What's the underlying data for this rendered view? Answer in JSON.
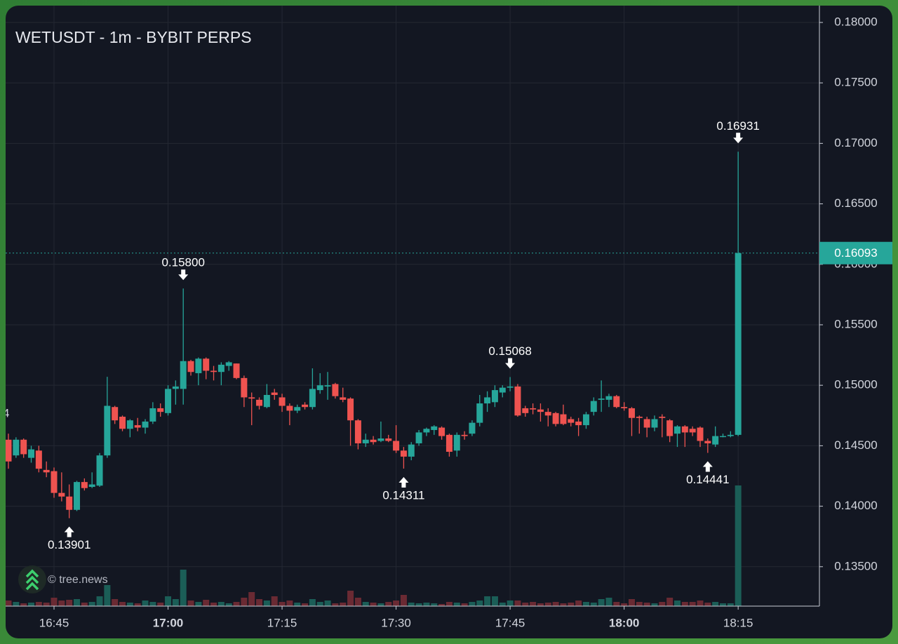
{
  "title": "WETUSDT - 1m - BYBIT PERPS",
  "watermark": "© tree.news",
  "edge_text": "4",
  "chart_data": {
    "type": "candlestick",
    "categories": [
      null,
      null,
      null,
      null,
      null,
      null,
      "16:45",
      null,
      null,
      null,
      null,
      null,
      null,
      null,
      null,
      null,
      null,
      null,
      null,
      null,
      null,
      "17:00",
      null,
      null,
      null,
      null,
      null,
      null,
      null,
      null,
      null,
      null,
      null,
      null,
      null,
      null,
      "17:15",
      null,
      null,
      null,
      null,
      null,
      null,
      null,
      null,
      null,
      null,
      null,
      null,
      null,
      null,
      "17:30",
      null,
      null,
      null,
      null,
      null,
      null,
      null,
      null,
      null,
      null,
      null,
      null,
      null,
      null,
      "17:45",
      null,
      null,
      null,
      null,
      null,
      null,
      null,
      null,
      null,
      null,
      null,
      null,
      null,
      null,
      "18:00",
      null,
      null,
      null,
      null,
      null,
      null,
      null,
      null,
      null,
      null,
      null,
      null,
      null,
      null,
      "18:15"
    ],
    "open": [
      0.1455,
      0.1442,
      0.1455,
      0.144,
      0.1446,
      0.143,
      0.1429,
      0.1411,
      0.1408,
      0.1397,
      0.142,
      0.1416,
      0.1417,
      0.1442,
      0.1482,
      0.1474,
      0.1464,
      0.1467,
      0.1465,
      0.147,
      0.1481,
      0.1477,
      0.1497,
      0.1497,
      0.152,
      0.151,
      0.1522,
      0.1512,
      0.1511,
      0.1516,
      0.1518,
      0.1506,
      0.149,
      0.1488,
      0.1482,
      0.1494,
      0.149,
      0.1483,
      0.1479,
      0.1484,
      0.1482,
      0.1496,
      0.1499,
      0.1501,
      0.149,
      0.1489,
      0.1471,
      0.1452,
      0.1455,
      0.1454,
      0.1456,
      0.1454,
      0.1446,
      0.1441,
      0.1452,
      0.1461,
      0.1463,
      0.1465,
      0.1459,
      0.1446,
      0.1459,
      0.146,
      0.1469,
      0.1485,
      0.1486,
      0.1494,
      0.1498,
      0.1499,
      0.1481,
      0.1481,
      0.148,
      0.1478,
      0.1477,
      0.1476,
      0.1472,
      0.147,
      0.1467,
      0.1478,
      0.1488,
      0.1488,
      0.1491,
      0.1482,
      0.1481,
      0.1474,
      0.1472,
      0.1465,
      0.1474,
      0.1471,
      0.146,
      0.1466,
      0.1464,
      0.1465,
      0.1454,
      0.1451,
      0.1458,
      0.1458,
      0.1459
    ],
    "high": [
      0.146,
      0.1457,
      0.1456,
      0.145,
      0.145,
      0.1437,
      0.1432,
      0.1428,
      0.1418,
      0.1421,
      0.1423,
      0.1428,
      0.1444,
      0.1507,
      0.1483,
      0.1475,
      0.1472,
      0.1473,
      0.1472,
      0.1486,
      0.1485,
      0.15,
      0.1504,
      0.158,
      0.1521,
      0.1523,
      0.1523,
      0.1516,
      0.1519,
      0.152,
      0.1518,
      0.1508,
      0.1494,
      0.149,
      0.1501,
      0.1497,
      0.1493,
      0.1485,
      0.1484,
      0.1486,
      0.1514,
      0.151,
      0.1511,
      0.1502,
      0.1498,
      0.149,
      0.1472,
      0.146,
      0.1458,
      0.147,
      0.1459,
      0.1467,
      0.1449,
      0.1453,
      0.1463,
      0.1465,
      0.1467,
      0.1466,
      0.146,
      0.1461,
      0.1462,
      0.1471,
      0.1492,
      0.1495,
      0.15,
      0.15,
      0.15068,
      0.1501,
      0.1483,
      0.1485,
      0.1485,
      0.1481,
      0.1478,
      0.1484,
      0.1474,
      0.1473,
      0.1478,
      0.149,
      0.1504,
      0.1493,
      0.1492,
      0.1486,
      0.1482,
      0.1475,
      0.1474,
      0.1475,
      0.1476,
      0.1472,
      0.1467,
      0.1467,
      0.1466,
      0.1466,
      0.1456,
      0.1466,
      0.146,
      0.1462,
      0.16931
    ],
    "low": [
      0.1431,
      0.144,
      0.144,
      0.1436,
      0.1428,
      0.1424,
      0.1407,
      0.1404,
      0.13901,
      0.1396,
      0.1413,
      0.1415,
      0.1416,
      0.144,
      0.1468,
      0.1462,
      0.1457,
      0.1462,
      0.146,
      0.1468,
      0.1474,
      0.1475,
      0.1484,
      0.1484,
      0.1508,
      0.15,
      0.1505,
      0.1504,
      0.15,
      0.1512,
      0.1505,
      0.1482,
      0.1467,
      0.148,
      0.1481,
      0.1488,
      0.1478,
      0.1467,
      0.1477,
      0.148,
      0.148,
      0.1493,
      0.1488,
      0.1489,
      0.1486,
      0.145,
      0.1447,
      0.1449,
      0.1451,
      0.1453,
      0.1453,
      0.1444,
      0.14311,
      0.1438,
      0.145,
      0.1458,
      0.1459,
      0.1455,
      0.1441,
      0.1441,
      0.1455,
      0.1458,
      0.1466,
      0.1478,
      0.1482,
      0.149,
      0.1495,
      0.1474,
      0.1474,
      0.1476,
      0.147,
      0.1466,
      0.1466,
      0.1467,
      0.1466,
      0.1458,
      0.1464,
      0.1475,
      0.1478,
      0.1482,
      0.1481,
      0.1479,
      0.1458,
      0.146,
      0.1457,
      0.1462,
      0.1457,
      0.1453,
      0.1449,
      0.1449,
      0.1458,
      0.1449,
      0.14441,
      0.1449,
      0.1457,
      0.1457,
      0.1458
    ],
    "close": [
      0.1437,
      0.1455,
      0.1443,
      0.1447,
      0.1431,
      0.1428,
      0.1411,
      0.1408,
      0.1397,
      0.142,
      0.1415,
      0.1418,
      0.1442,
      0.1483,
      0.1471,
      0.1464,
      0.1471,
      0.1465,
      0.147,
      0.1481,
      0.1478,
      0.1497,
      0.1499,
      0.152,
      0.1511,
      0.1522,
      0.1512,
      0.1511,
      0.1517,
      0.1519,
      0.1506,
      0.149,
      0.1489,
      0.1483,
      0.1492,
      0.1492,
      0.1483,
      0.1479,
      0.1482,
      0.1482,
      0.1497,
      0.15,
      0.15,
      0.1491,
      0.1488,
      0.1471,
      0.1452,
      0.1455,
      0.1453,
      0.1456,
      0.1454,
      0.1446,
      0.1441,
      0.1451,
      0.1461,
      0.1464,
      0.1466,
      0.1458,
      0.1445,
      0.1459,
      0.1458,
      0.1469,
      0.1485,
      0.149,
      0.1496,
      0.1498,
      0.1499,
      0.1475,
      0.1477,
      0.148,
      0.1478,
      0.1475,
      0.1468,
      0.1468,
      0.1469,
      0.1467,
      0.1476,
      0.1487,
      0.1489,
      0.1491,
      0.1482,
      0.1481,
      0.1473,
      0.1473,
      0.1465,
      0.1472,
      0.1473,
      0.1458,
      0.1466,
      0.1461,
      0.1461,
      0.1454,
      0.1452,
      0.1458,
      0.1458,
      0.1459,
      0.16093
    ],
    "volume": [
      8,
      6,
      4,
      5,
      6,
      5,
      12,
      8,
      9,
      10,
      5,
      6,
      14,
      30,
      10,
      6,
      5,
      4,
      8,
      6,
      5,
      14,
      10,
      52,
      8,
      6,
      9,
      5,
      6,
      4,
      6,
      12,
      20,
      10,
      8,
      14,
      6,
      8,
      5,
      4,
      10,
      6,
      8,
      4,
      5,
      22,
      12,
      6,
      5,
      4,
      6,
      8,
      16,
      5,
      4,
      5,
      4,
      3,
      6,
      5,
      4,
      6,
      8,
      14,
      14,
      5,
      8,
      8,
      5,
      6,
      4,
      5,
      6,
      4,
      5,
      8,
      6,
      5,
      10,
      12,
      6,
      4,
      10,
      6,
      5,
      4,
      6,
      12,
      8,
      6,
      6,
      8,
      5,
      6,
      4,
      4,
      172
    ],
    "up_color": "#26a69a",
    "down_color": "#ef5350",
    "up_volume_color": "#1b5e57",
    "down_volume_color": "#6a2a33",
    "ylim": [
      0.13174,
      0.18139
    ],
    "yticks": [
      {
        "value": 0.135,
        "label": "0.13500"
      },
      {
        "value": 0.14,
        "label": "0.14000"
      },
      {
        "value": 0.145,
        "label": "0.14500"
      },
      {
        "value": 0.15,
        "label": "0.15000"
      },
      {
        "value": 0.155,
        "label": "0.15500"
      },
      {
        "value": 0.16,
        "label": "0.16000"
      },
      {
        "value": 0.165,
        "label": "0.16500"
      },
      {
        "value": 0.17,
        "label": "0.17000"
      },
      {
        "value": 0.175,
        "label": "0.17500"
      },
      {
        "value": 0.18,
        "label": "0.18000"
      }
    ],
    "grid": true,
    "last_price": {
      "value": 0.16093,
      "label": "0.16093"
    },
    "annotations": [
      {
        "text": "0.13901",
        "value": 0.13901
      },
      {
        "text": "0.15800",
        "value": 0.158
      },
      {
        "text": "0.14311",
        "value": 0.14311
      },
      {
        "text": "0.15068",
        "value": 0.15068
      },
      {
        "text": "0.14441",
        "value": 0.14441
      },
      {
        "text": "0.16931",
        "value": 0.16931
      }
    ]
  }
}
